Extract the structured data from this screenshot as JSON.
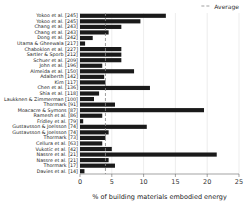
{
  "chart_data": {
    "type": "bar",
    "orientation": "horizontal",
    "x_label": "% of building materials embodied energy",
    "categories": [
      "Yokoo et al. [245]",
      "Yokoo et al. [245]",
      "Chang et al. [243]",
      "Chang et al. [243]",
      "Dong et al. [242]",
      "Utama & Gheewala [217]",
      "Chaboklon et al. [227]",
      "Sartler & Sporb [212]",
      "Schuer et al. [209]",
      "John et al. [196]",
      "Almeida et al. [150]",
      "Adalberth [142]",
      "Kim [117]",
      "Chen et al. [136]",
      "Shia et al. [118]",
      "Laukknen & Zimmerman [100]",
      "Thormark [91]",
      "Moacacre & Symons [87]",
      "Ramesh et al. [86]",
      "Fridley et al. [79]",
      "Gustavsson & Joelsson [74]",
      "Gustavsson & Joelsson [74]",
      "Thormark [73]",
      "Cellura et al. [63]",
      "Vukotic et al. [42]",
      "Nassre et al. [21]",
      "Nassre et al. [21]",
      "Thormark [17]",
      "Davies et al. [14]"
    ],
    "values": [
      13.5,
      9.5,
      6.5,
      4.5,
      2.0,
      0.8,
      6.5,
      6.5,
      6.5,
      3.5,
      8.5,
      3.8,
      4.0,
      11.0,
      3.0,
      2.2,
      5.5,
      19.5,
      3.5,
      0.5,
      10.5,
      4.5,
      4.0,
      3.5,
      5.0,
      21.5,
      4.5,
      5.5,
      0.7
    ],
    "color": "#1a1a1a",
    "reference_line": {
      "name": "Average",
      "value": 4.0,
      "color": "#888888",
      "line_style": "dashed"
    },
    "xlim": [
      0,
      25
    ],
    "xticks": [
      0,
      5,
      10,
      15,
      20,
      25
    ],
    "grid": true,
    "legend": "upper right"
  }
}
